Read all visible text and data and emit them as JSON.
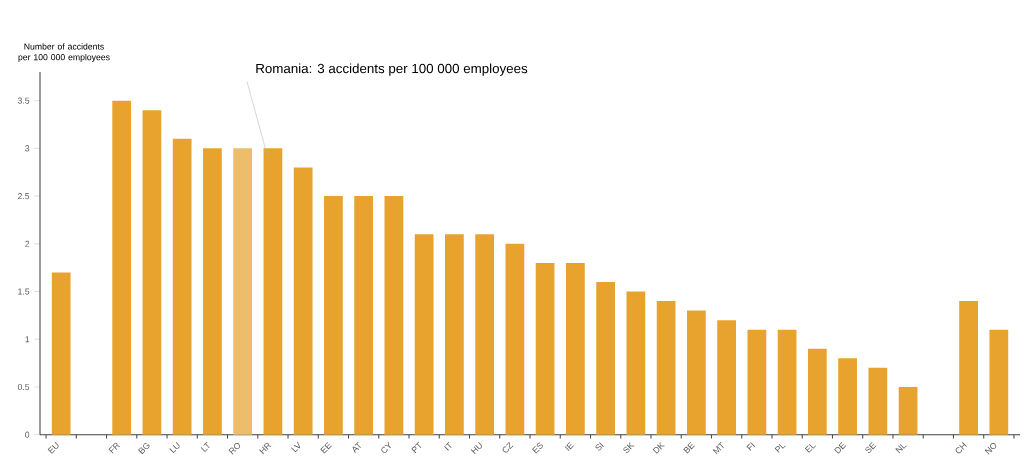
{
  "chart_data": {
    "type": "bar",
    "ylabel": "Number of accidents per 100 000 employees",
    "categories": [
      "EU",
      null,
      "FR",
      "BG",
      "LU",
      "LT",
      "RO",
      "HR",
      "LV",
      "EE",
      "AT",
      "CY",
      "PT",
      "IT",
      "HU",
      "CZ",
      "ES",
      "IE",
      "SI",
      "SK",
      "DK",
      "BE",
      "MT",
      "FI",
      "PL",
      "EL",
      "DE",
      "SE",
      "NL",
      null,
      "CH",
      "NO"
    ],
    "values": [
      1.7,
      null,
      3.5,
      3.4,
      3.1,
      3.0,
      3.0,
      3.0,
      2.8,
      2.5,
      2.5,
      2.5,
      2.1,
      2.1,
      2.1,
      2.0,
      1.8,
      1.8,
      1.6,
      1.5,
      1.4,
      1.3,
      1.2,
      1.1,
      1.1,
      0.9,
      0.8,
      0.7,
      0.5,
      null,
      1.4,
      1.1
    ],
    "colors": [
      "#e8a22e",
      null,
      "#e8a22e",
      "#e8a22e",
      "#e8a22e",
      "#e8a22e",
      "#ecbd6a",
      "#e8a22e",
      "#e8a22e",
      "#e8a22e",
      "#e8a22e",
      "#e8a22e",
      "#e8a22e",
      "#e8a22e",
      "#e8a22e",
      "#e8a22e",
      "#e8a22e",
      "#e8a22e",
      "#e8a22e",
      "#e8a22e",
      "#e8a22e",
      "#e8a22e",
      "#e8a22e",
      "#e8a22e",
      "#e8a22e",
      "#e8a22e",
      "#e8a22e",
      "#e8a22e",
      "#e8a22e",
      null,
      "#e8a22e",
      "#e8a22e"
    ],
    "ylim": [
      0,
      3.8
    ],
    "yticks": [
      0,
      0.5,
      1,
      1.5,
      2,
      2.5,
      3,
      3.5
    ],
    "annotations": [
      "Romania: 3 accidents per 100 000 employees"
    ],
    "grid": false
  }
}
